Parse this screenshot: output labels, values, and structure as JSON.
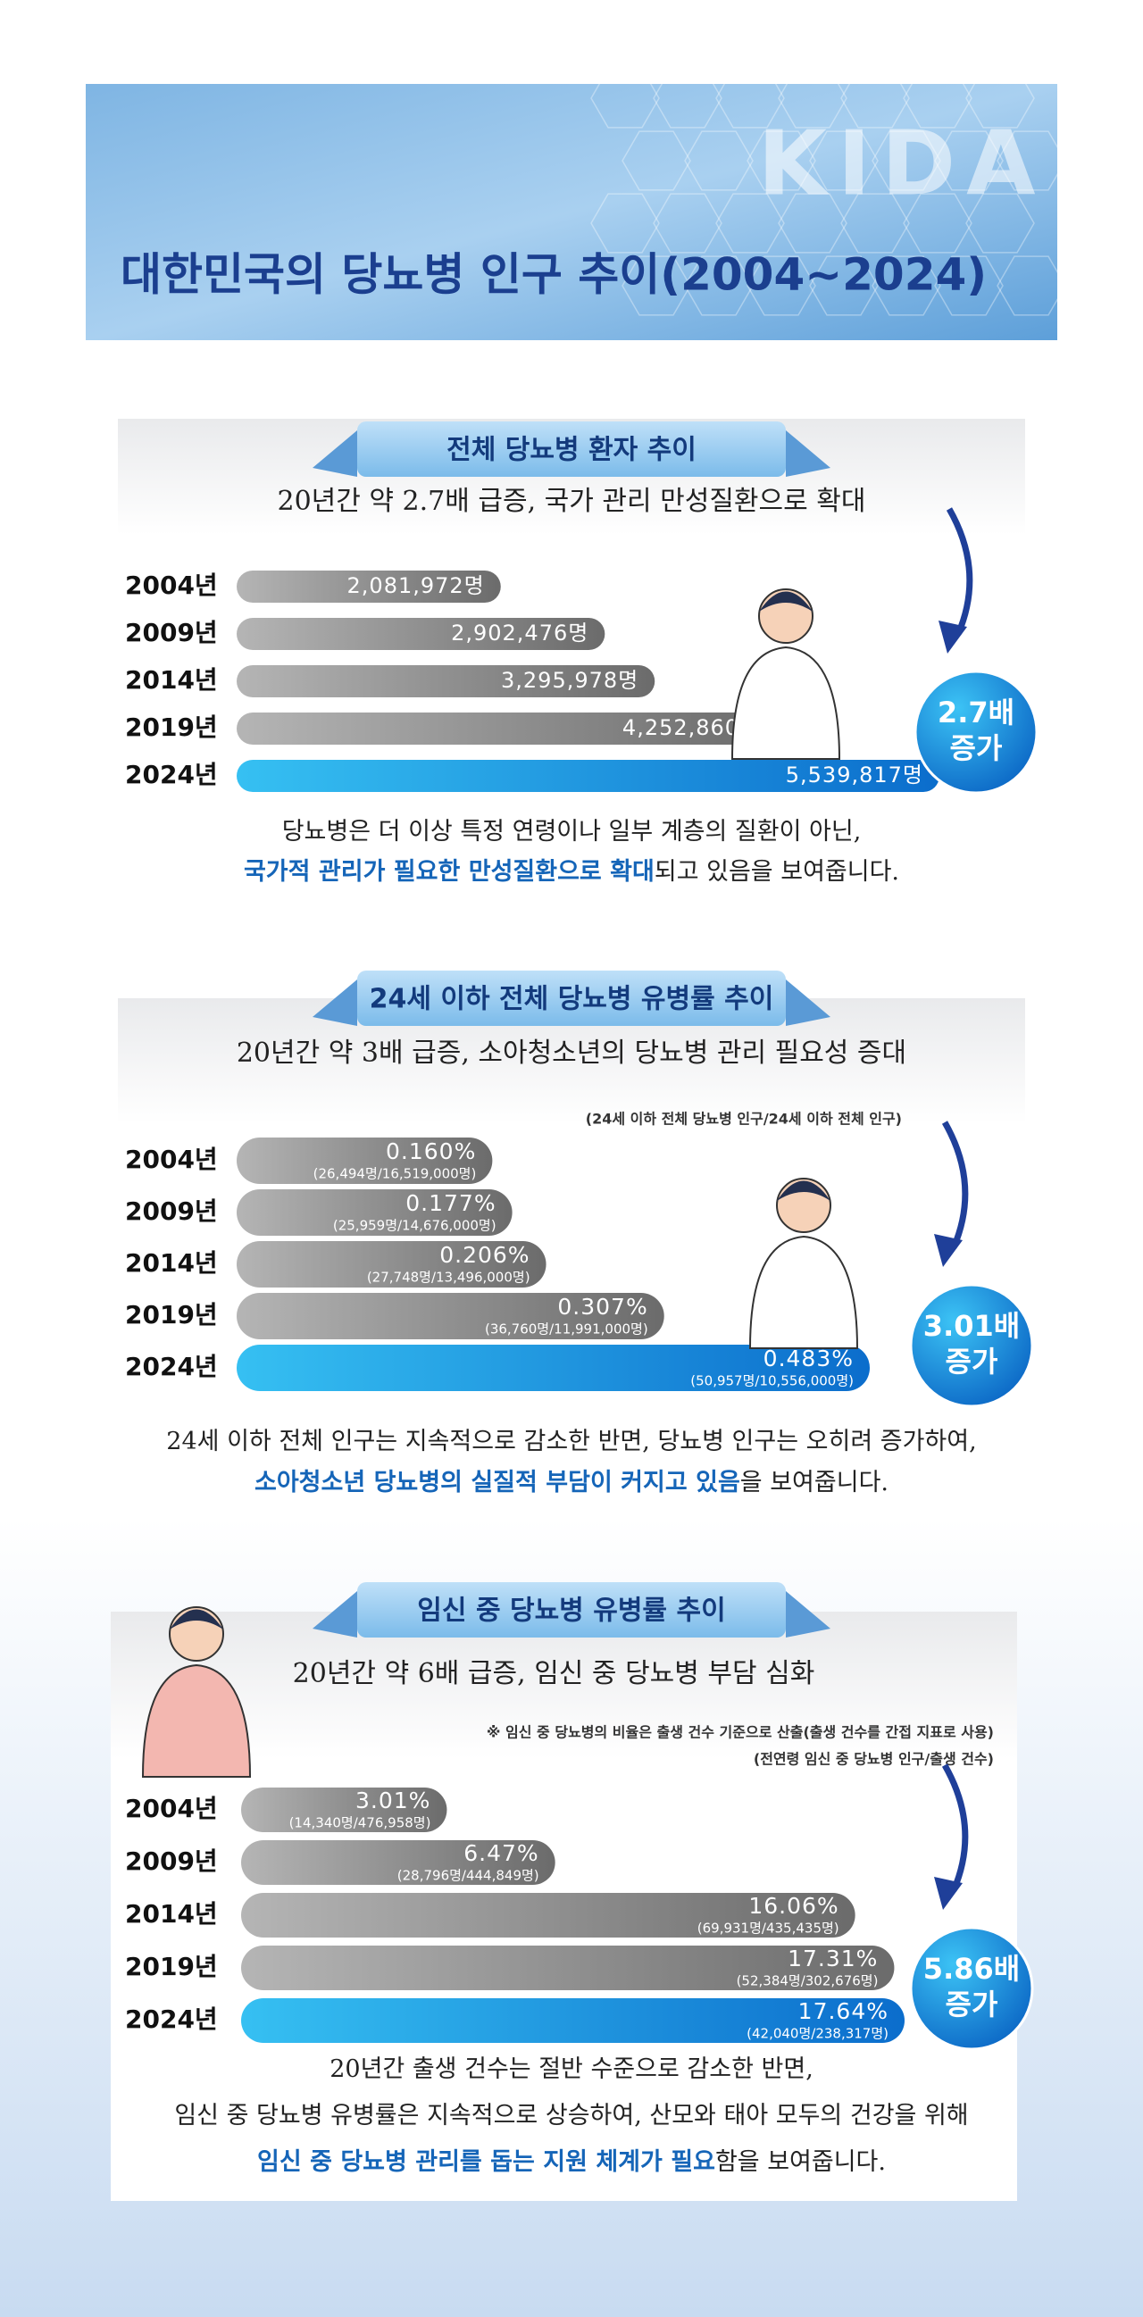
{
  "header": {
    "title": "대한민국의 당뇨병 인구 추이(2004~2024)",
    "logo": "KIDA"
  },
  "chart_data": [
    {
      "type": "bar",
      "title": "전체 당뇨병 환자 추이",
      "subtitle": "20년간 약 2.7배 급증,  국가 관리 만성질환으로 확대",
      "categories": [
        "2004년",
        "2009년",
        "2014년",
        "2019년",
        "2024년"
      ],
      "values": [
        2081972,
        2902476,
        3295978,
        4252860,
        5539817
      ],
      "value_labels": [
        "2,081,972명",
        "2,902,476명",
        "3,295,978명",
        "4,252,860명",
        "5,539,817명"
      ],
      "color": "#8a8a8a",
      "highlight_color": "#1b8fe0",
      "badge": [
        "2.7배",
        "증가"
      ],
      "description": [
        [
          {
            "text": "당뇨병은 더 이상 특정 연령이나 일부 계층의 질환이 아닌,",
            "emphasis": false
          }
        ],
        [
          {
            "text": "국가적 관리가 필요한 만성질환으로 확대",
            "emphasis": true
          },
          {
            "text": "되고 있음을 보여줍니다.",
            "emphasis": false
          }
        ]
      ]
    },
    {
      "type": "bar",
      "title": "24세 이하 전체 당뇨병 유병률 추이",
      "subtitle": "20년간 약 3배 급증,  소아청소년의 당뇨병 관리 필요성 증대",
      "notes": [
        "(24세 이하 전체 당뇨병 인구/24세 이하 전체 인구)"
      ],
      "categories": [
        "2004년",
        "2009년",
        "2014년",
        "2019년",
        "2024년"
      ],
      "values": [
        0.16,
        0.177,
        0.206,
        0.307,
        0.483
      ],
      "value_labels": [
        "0.160%",
        "0.177%",
        "0.206%",
        "0.307%",
        "0.483%"
      ],
      "detail_labels": [
        "(26,494명/16,519,000명)",
        "(25,959명/14,676,000명)",
        "(27,748명/13,496,000명)",
        "(36,760명/11,991,000명)",
        "(50,957명/10,556,000명)"
      ],
      "color": "#8a8a8a",
      "highlight_color": "#1b8fe0",
      "badge": [
        "3.01배",
        "증가"
      ],
      "description": [
        [
          {
            "text": "24세 이하 전체 인구는 지속적으로 감소한 반면,  당뇨병 인구는 오히려 증가하여,",
            "emphasis": false
          }
        ],
        [
          {
            "text": "소아청소년 당뇨병의 실질적 부담이 커지고 있음",
            "emphasis": true
          },
          {
            "text": "을 보여줍니다.",
            "emphasis": false
          }
        ]
      ]
    },
    {
      "type": "bar",
      "title": "임신 중 당뇨병 유병률 추이",
      "subtitle": "20년간 약 6배 급증,  임신 중 당뇨병 부담 심화",
      "notes": [
        "※ 임신 중 당뇨병의 비율은 출생 건수 기준으로 산출(출생 건수를 간접 지표로 사용)",
        "(전연령 임신 중 당뇨병 인구/출생 건수)"
      ],
      "categories": [
        "2004년",
        "2009년",
        "2014년",
        "2019년",
        "2024년"
      ],
      "values": [
        3.01,
        6.47,
        16.06,
        17.31,
        17.64
      ],
      "value_labels": [
        "3.01%",
        "6.47%",
        "16.06%",
        "17.31%",
        "17.64%"
      ],
      "detail_labels": [
        "(14,340명/476,958명)",
        "(28,796명/444,849명)",
        "(69,931명/435,435명)",
        "(52,384명/302,676명)",
        "(42,040명/238,317명)"
      ],
      "color": "#8a8a8a",
      "highlight_color": "#1b8fe0",
      "badge": [
        "5.86배",
        "증가"
      ],
      "description": [
        [
          {
            "text": "20년간 출생 건수는 절반 수준으로 감소한 반면,",
            "emphasis": false
          }
        ],
        [
          {
            "text": "임신 중 당뇨병 유병률은 지속적으로 상승하여,  산모와 태아 모두의 건강을 위해",
            "emphasis": false
          }
        ],
        [
          {
            "text": "임신 중 당뇨병 관리를 돕는 지원 체계가 필요",
            "emphasis": true
          },
          {
            "text": "함을 보여줍니다.",
            "emphasis": false
          }
        ]
      ]
    }
  ]
}
